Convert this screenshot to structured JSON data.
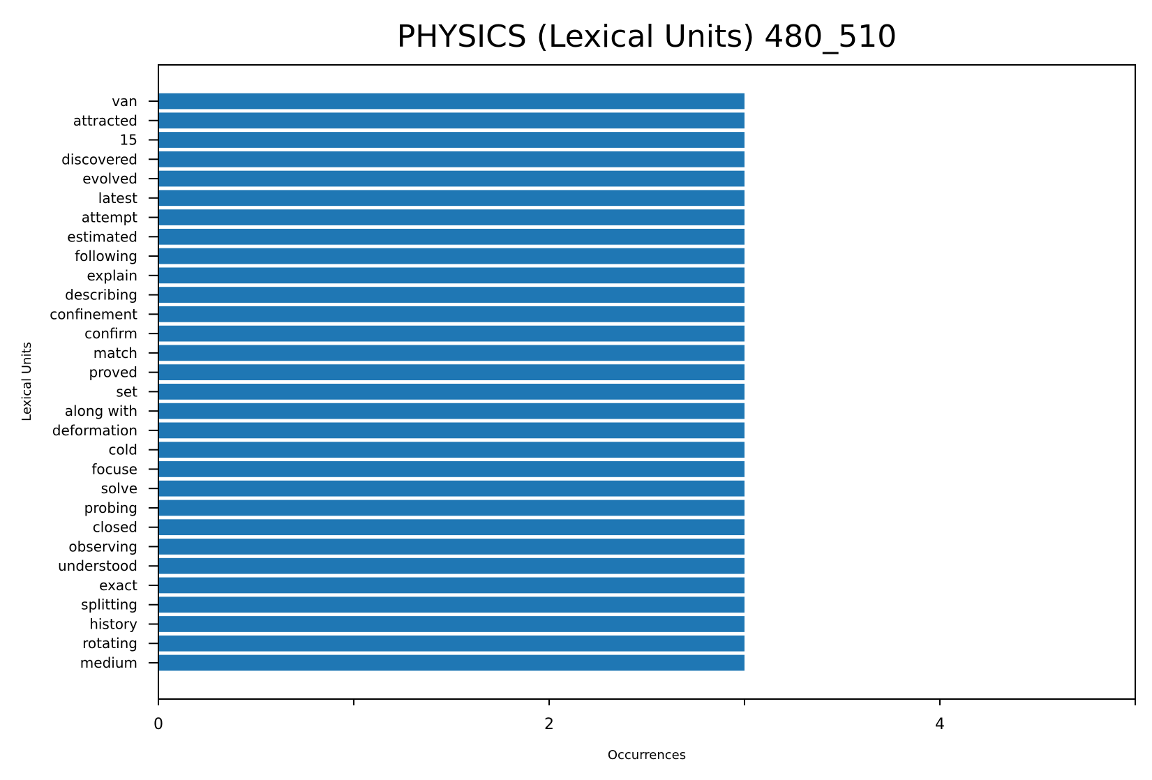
{
  "chart_data": {
    "type": "bar",
    "orientation": "horizontal",
    "title": "PHYSICS (Lexical Units) 480_510",
    "xlabel": "Occurrences",
    "ylabel": "Lexical Units",
    "xlim": [
      0,
      5
    ],
    "x_ticks": [
      0,
      1,
      2,
      3,
      4,
      5
    ],
    "x_tick_labels": [
      "0",
      "",
      "2",
      "",
      "4",
      ""
    ],
    "grid": false,
    "color": "#1f77b4",
    "categories": [
      "van",
      "attracted",
      "15",
      "discovered",
      "evolved",
      "latest",
      "attempt",
      "estimated",
      "following",
      "explain",
      "describing",
      "confinement",
      "confirm",
      "match",
      "proved",
      "set",
      "along with",
      "deformation",
      "cold",
      "focuse",
      "solve",
      "probing",
      "closed",
      "observing",
      "understood",
      "exact",
      "splitting",
      "history",
      "rotating",
      "medium"
    ],
    "values": [
      3,
      3,
      3,
      3,
      3,
      3,
      3,
      3,
      3,
      3,
      3,
      3,
      3,
      3,
      3,
      3,
      3,
      3,
      3,
      3,
      3,
      3,
      3,
      3,
      3,
      3,
      3,
      3,
      3,
      3
    ]
  }
}
